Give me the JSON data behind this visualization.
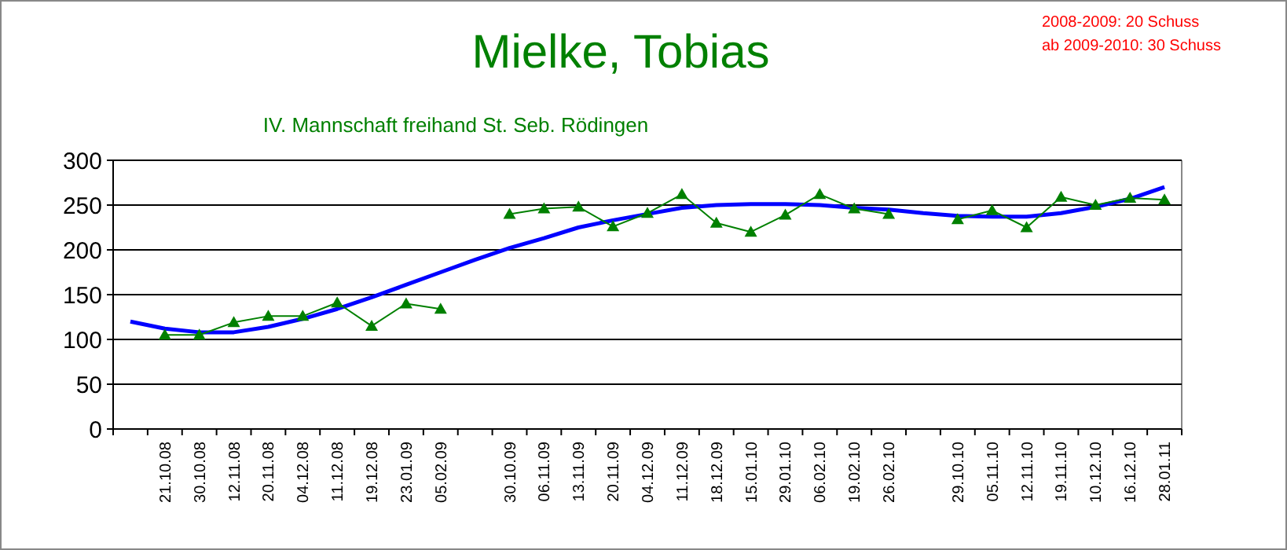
{
  "chart_data": {
    "type": "line",
    "title": "Mielke, Tobias",
    "subtitle": "IV. Mannschaft freihand St. Seb. Rödingen",
    "annotations": [
      "2008-2009: 20 Schuss",
      "ab 2009-2010: 30 Schuss"
    ],
    "categories": [
      null,
      "21.10.08",
      "30.10.08",
      "12.11.08",
      "20.11.08",
      "04.12.08",
      "11.12.08",
      "19.12.08",
      "23.01.09",
      "05.02.09",
      null,
      "30.10.09",
      "06.11.09",
      "13.11.09",
      "20.11.09",
      "04.12.09",
      "11.12.09",
      "18.12.09",
      "15.01.10",
      "29.01.10",
      "06.02.10",
      "19.02.10",
      "26.02.10",
      null,
      "29.10.10",
      "05.11.10",
      "12.11.10",
      "19.11.10",
      "10.12.10",
      "16.12.10",
      "28.01.11"
    ],
    "series": [
      {
        "color": "#008000",
        "marker": "triangle",
        "values": [
          null,
          105,
          105,
          119,
          126,
          126,
          141,
          115,
          140,
          134,
          null,
          240,
          246,
          248,
          226,
          241,
          262,
          230,
          220,
          239,
          262,
          246,
          240,
          null,
          234,
          244,
          225,
          259,
          250,
          258,
          256
        ]
      },
      {
        "color": "#0000ff",
        "marker": "none",
        "values": [
          120,
          112,
          108,
          108,
          114,
          123,
          134,
          147,
          161,
          175,
          189,
          202,
          213,
          225,
          233,
          240,
          247,
          250,
          251,
          251,
          250,
          247,
          245,
          241,
          238,
          237,
          237,
          241,
          248,
          257,
          270
        ]
      }
    ],
    "ylim": [
      0,
      300
    ],
    "yticks": [
      0,
      50,
      100,
      150,
      200,
      250,
      300
    ],
    "grid": "y"
  }
}
